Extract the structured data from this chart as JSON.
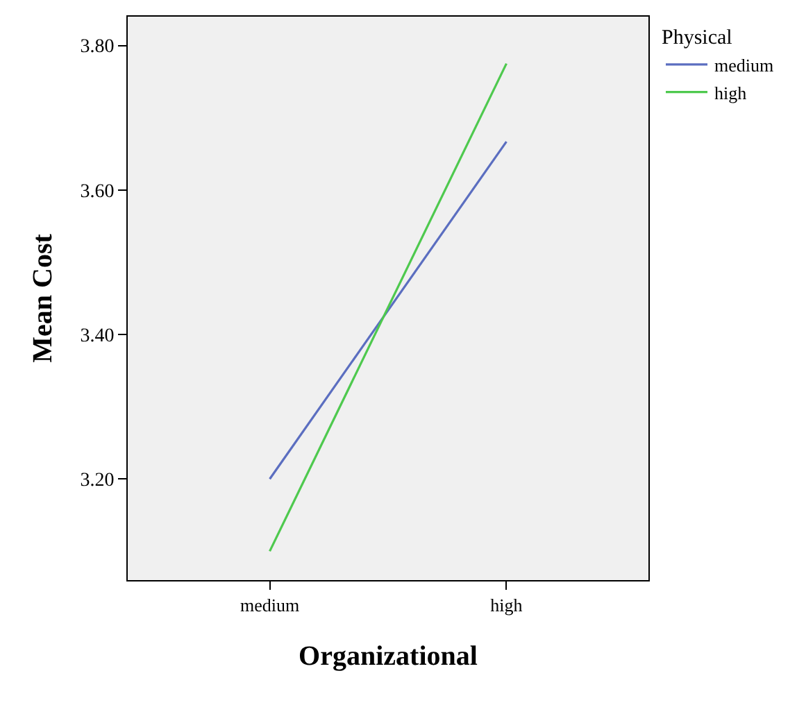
{
  "chart_data": {
    "type": "line",
    "xlabel": "Organizational",
    "ylabel": "Mean Cost",
    "legend_title": "Physical",
    "categories": [
      "medium",
      "high"
    ],
    "series": [
      {
        "name": "medium",
        "color": "#5b6ec0",
        "values": [
          3.2,
          3.667
        ]
      },
      {
        "name": "high",
        "color": "#4ec94e",
        "values": [
          3.1,
          3.775
        ]
      }
    ],
    "ylim": [
      3.06,
      3.84
    ],
    "yticks": [
      {
        "value": 3.2,
        "label": "3.20"
      },
      {
        "value": 3.4,
        "label": "3.40"
      },
      {
        "value": 3.6,
        "label": "3.60"
      },
      {
        "value": 3.8,
        "label": "3.80"
      }
    ],
    "grid": false,
    "legend": "top right",
    "marker": "none",
    "line_style": "solid"
  }
}
